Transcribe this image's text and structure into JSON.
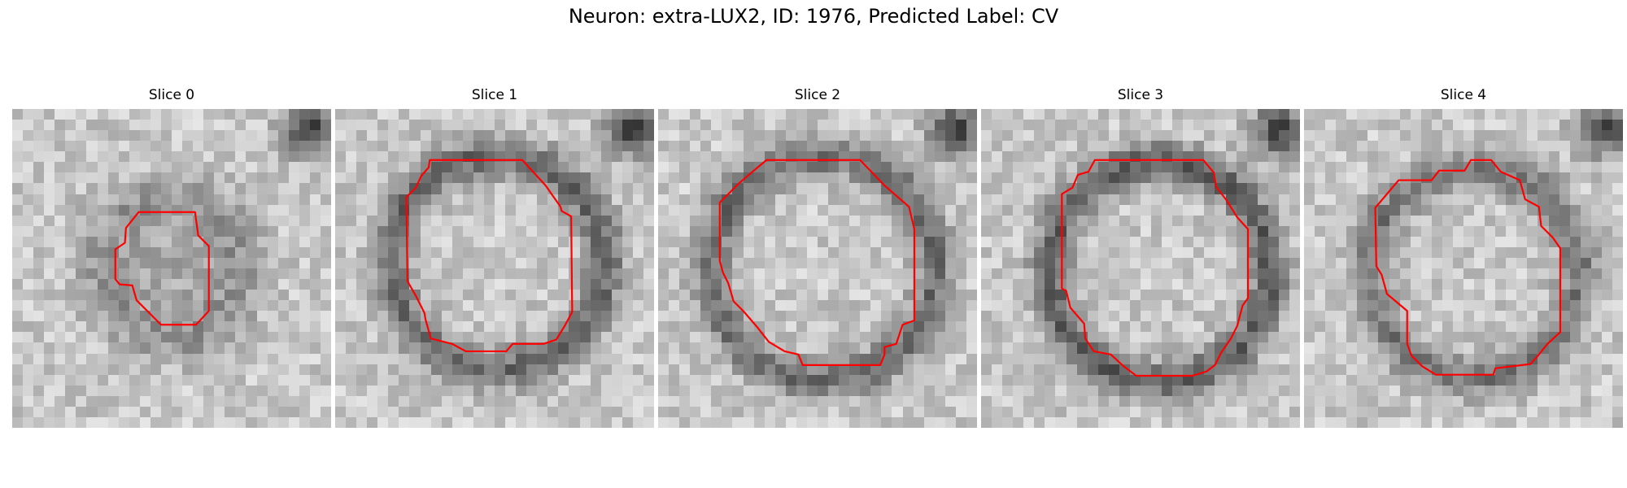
{
  "figure": {
    "title": "Neuron: extra-LUX2, ID: 1976, Predicted Label: CV"
  },
  "contour_color": "#ff0000",
  "slices": [
    {
      "label": "Slice 0"
    },
    {
      "label": "Slice 1"
    },
    {
      "label": "Slice 2"
    },
    {
      "label": "Slice 3"
    },
    {
      "label": "Slice 4"
    }
  ]
}
